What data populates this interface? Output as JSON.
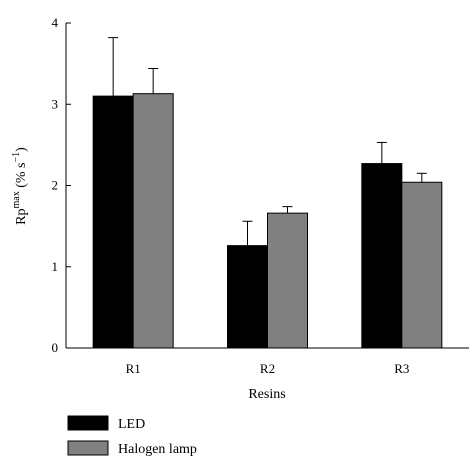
{
  "chart_data": {
    "type": "bar",
    "categories": [
      "R1",
      "R2",
      "R3"
    ],
    "series": [
      {
        "name": "LED",
        "values": [
          3.1,
          1.26,
          2.27
        ],
        "errors": [
          0.72,
          0.3,
          0.26
        ],
        "color": "#000000"
      },
      {
        "name": "Halogen lamp",
        "values": [
          3.13,
          1.66,
          2.04
        ],
        "errors": [
          0.31,
          0.08,
          0.11
        ],
        "color": "#808080"
      }
    ],
    "xlabel": "Resins",
    "ylabel": {
      "base": "Rp",
      "superscript": "max",
      "unit_open": " (% s",
      "unit_sup": "−1",
      "unit_close": ")"
    },
    "ylim": [
      0,
      4
    ],
    "yticks": [
      "0",
      "1",
      "2",
      "3",
      "4"
    ],
    "grid": false,
    "legend_position": "bottom-left"
  }
}
